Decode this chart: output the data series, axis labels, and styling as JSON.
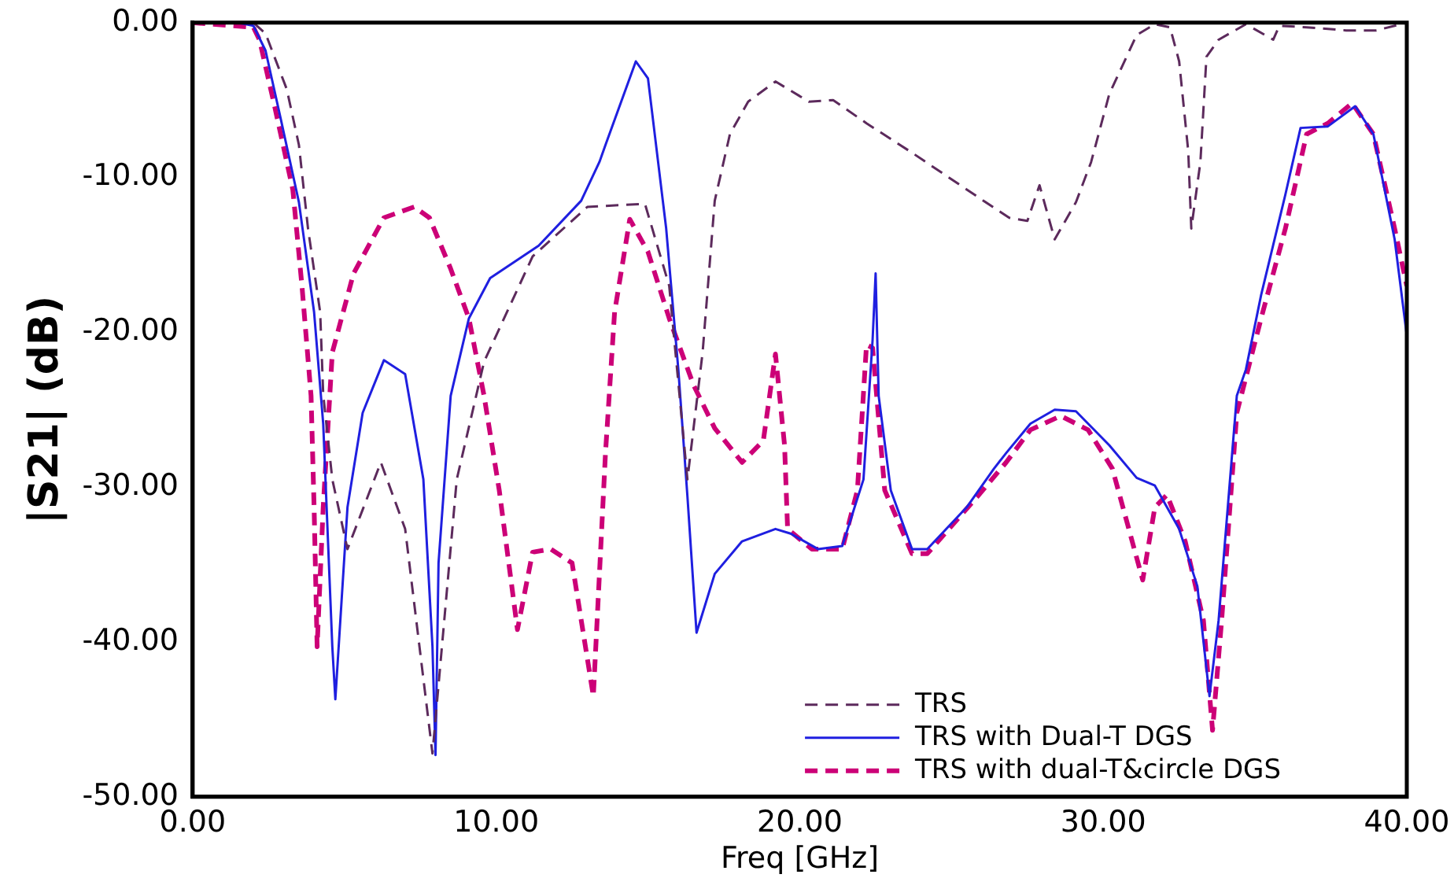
{
  "chart_data": {
    "type": "line",
    "xlabel": "Freq [GHz]",
    "ylabel": "|S21| (dB)",
    "xlim": [
      0,
      40
    ],
    "ylim": [
      -50,
      0
    ],
    "xticks": [
      {
        "value": 0,
        "label": "0.00"
      },
      {
        "value": 10,
        "label": "10.00"
      },
      {
        "value": 20,
        "label": "20.00"
      },
      {
        "value": 30,
        "label": "30.00"
      },
      {
        "value": 40,
        "label": "40.00"
      }
    ],
    "yticks": [
      {
        "value": -50,
        "label": "-50.00"
      },
      {
        "value": -40,
        "label": "-40.00"
      },
      {
        "value": -30,
        "label": "-30.00"
      },
      {
        "value": -20,
        "label": "-20.00"
      },
      {
        "value": -10,
        "label": "-10.00"
      },
      {
        "value": 0,
        "label": "0.00"
      }
    ],
    "grid": false,
    "legend": "bottom right",
    "marker": "none",
    "series": [
      {
        "name": "TRS",
        "color": "#5c2a5c",
        "line_style": "dashed",
        "x": [
          0,
          1,
          2,
          2.4,
          3.1,
          3.5,
          3.8,
          4.2,
          4.3,
          4.6,
          5.1,
          6.2,
          7.0,
          7.9,
          8.7,
          9.6,
          11.2,
          13,
          14.9,
          15.7,
          16.3,
          16.8,
          17.2,
          17.7,
          18.3,
          19.2,
          20.3,
          21.1,
          22.2,
          23.7,
          25.9,
          26.9,
          27.5,
          27.9,
          28.4,
          29.1,
          29.6,
          30.2,
          31.1,
          31.7,
          32.2,
          32.5,
          32.8,
          32.9,
          33.2,
          33.4,
          33.8,
          34.7,
          35.6,
          35.8,
          36.7,
          38,
          39,
          40
        ],
        "values": [
          0,
          0,
          0,
          -0.7,
          -4.3,
          -7.9,
          -13.3,
          -18.7,
          -24,
          -29.5,
          -34,
          -28.4,
          -32.7,
          -47.2,
          -29.5,
          -21.9,
          -15.1,
          -11.9,
          -11.7,
          -17,
          -29.5,
          -21.3,
          -11.5,
          -7.2,
          -5.1,
          -3.8,
          -5.1,
          -5,
          -6.5,
          -8.4,
          -11.3,
          -12.6,
          -12.8,
          -10.5,
          -14,
          -11.6,
          -9,
          -4.6,
          -0.8,
          -0.1,
          -0.3,
          -2.5,
          -8.3,
          -13.3,
          -9,
          -2.2,
          -1.1,
          -0.1,
          -1.1,
          -0.2,
          -0.3,
          -0.5,
          -0.5,
          0
        ]
      },
      {
        "name": "TRS with Dual-T DGS",
        "color": "#1f1fe0",
        "line_style": "solid",
        "x": [
          0,
          1.5,
          2,
          2.4,
          2.9,
          3.5,
          4.0,
          4.3,
          4.6,
          4.7,
          5.1,
          5.6,
          6.3,
          7.0,
          7.6,
          7.9,
          8.0,
          8.1,
          8.5,
          9.1,
          9.8,
          11.4,
          12.8,
          13.4,
          13.6,
          14.6,
          15.0,
          15.6,
          16.0,
          16.3,
          16.6,
          17.2,
          18.1,
          19.2,
          19.7,
          20.6,
          21.4,
          22.1,
          22.4,
          22.5,
          22.6,
          23,
          23.7,
          24.2,
          25.5,
          26.4,
          26.8,
          27.6,
          28.4,
          29.1,
          30.2,
          31.1,
          31.7,
          32.5,
          33.1,
          33.5,
          33.8,
          34.4,
          34.7,
          35.2,
          36,
          36.5,
          37.4,
          38.3,
          38.9,
          39.6,
          40
        ],
        "values": [
          0,
          0,
          -0.2,
          -1.8,
          -6.2,
          -11.6,
          -18.7,
          -25.9,
          -40.3,
          -43.7,
          -31.3,
          -25.2,
          -21.8,
          -22.7,
          -29.5,
          -40.3,
          -47.3,
          -34.9,
          -24.1,
          -19.1,
          -16.5,
          -14.4,
          -11.5,
          -9,
          -7.9,
          -2.5,
          -3.6,
          -13.3,
          -22.4,
          -30.6,
          -39.4,
          -35.6,
          -33.5,
          -32.7,
          -33,
          -34,
          -33.8,
          -29.5,
          -20.5,
          -16.2,
          -24.1,
          -30.2,
          -34,
          -34,
          -31.3,
          -28.8,
          -27.8,
          -25.9,
          -25,
          -25.1,
          -27.3,
          -29.4,
          -29.9,
          -32.7,
          -36.4,
          -43.5,
          -38.6,
          -24.1,
          -22.4,
          -17.6,
          -11.1,
          -6.8,
          -6.7,
          -5.4,
          -7.2,
          -14,
          -20.2
        ]
      },
      {
        "name": "TRS with dual-T&circle DGS",
        "color": "#cc0077",
        "line_style": "dashed",
        "x": [
          0,
          2,
          2.2,
          2.7,
          3.3,
          3.6,
          3.9,
          4.0,
          4.1,
          4.3,
          4.6,
          5.3,
          6.3,
          7.3,
          7.8,
          8.5,
          9.1,
          9.6,
          10.1,
          10.7,
          11.2,
          11.8,
          12.5,
          13.2,
          13.6,
          13.9,
          14.4,
          15,
          15.7,
          16.5,
          17.2,
          18.1,
          18.8,
          19.2,
          19.5,
          19.6,
          20.4,
          21.4,
          21.9,
          22.2,
          22.4,
          22.8,
          23.7,
          24.2,
          25.9,
          26.8,
          27.6,
          28.6,
          29.5,
          30.3,
          31.3,
          31.7,
          32.1,
          32.7,
          33.3,
          33.6,
          33.9,
          34.4,
          35.2,
          36,
          36.7,
          37.4,
          38.2,
          38.9,
          39.6,
          40
        ],
        "values": [
          0,
          -0.3,
          -1.1,
          -5.4,
          -10.8,
          -17,
          -24.1,
          -31.3,
          -40.3,
          -31.3,
          -21.3,
          -16.2,
          -12.6,
          -11.9,
          -12.6,
          -15.9,
          -19.1,
          -24.1,
          -30.2,
          -39.2,
          -34.2,
          -34,
          -34.9,
          -43.5,
          -27.8,
          -18.7,
          -12.7,
          -14.8,
          -19.1,
          -23.4,
          -26.2,
          -28.4,
          -27,
          -21.4,
          -27.3,
          -32.7,
          -34,
          -34,
          -30.2,
          -20.8,
          -21,
          -30.2,
          -34.3,
          -34.3,
          -30.5,
          -28.4,
          -26.3,
          -25.4,
          -26.3,
          -28.8,
          -36,
          -31.3,
          -30.5,
          -33.5,
          -38.6,
          -45.7,
          -38.6,
          -25.2,
          -19.1,
          -13.3,
          -7.2,
          -6.5,
          -5.2,
          -7.2,
          -13.3,
          -17
        ]
      }
    ]
  }
}
